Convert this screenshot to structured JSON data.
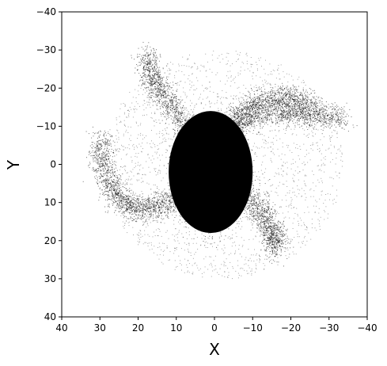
{
  "chart_data": {
    "type": "scatter",
    "title": "",
    "xlabel": "X",
    "ylabel": "Y",
    "xlim": [
      40,
      -40
    ],
    "ylim": [
      40,
      -40
    ],
    "x_inverted": true,
    "y_inverted": true,
    "x_ticks": [
      40,
      30,
      20,
      10,
      0,
      -10,
      -20,
      -30,
      -40
    ],
    "x_tick_labels": [
      "40",
      "30",
      "20",
      "10",
      "0",
      "−10",
      "−20",
      "−30",
      "−40"
    ],
    "y_ticks": [
      -40,
      -30,
      -20,
      -10,
      0,
      10,
      20,
      30,
      40
    ],
    "y_tick_labels": [
      "−40",
      "−30",
      "−20",
      "−10",
      "0",
      "10",
      "20",
      "30",
      "40"
    ],
    "grid": false,
    "legend": "none",
    "marker_color": "#000000",
    "background": "#ffffff",
    "core": {
      "x": 1,
      "y": 2,
      "width": 11,
      "height": 16
    },
    "spiral_arms": [
      {
        "points": [
          [
            0,
            -5
          ],
          [
            -8,
            -12
          ],
          [
            -18,
            -14
          ],
          [
            -25,
            -13
          ],
          [
            -34,
            -12
          ]
        ]
      },
      {
        "points": [
          [
            5,
            5
          ],
          [
            12,
            10
          ],
          [
            20,
            12
          ],
          [
            25,
            9
          ],
          [
            29,
            2
          ],
          [
            30,
            -7
          ]
        ]
      },
      {
        "points": [
          [
            -4,
            -10
          ],
          [
            -10,
            -16
          ],
          [
            -18,
            -18
          ],
          [
            -26,
            -16
          ]
        ]
      },
      {
        "points": [
          [
            6,
            -8
          ],
          [
            12,
            -16
          ],
          [
            16,
            -22
          ],
          [
            18,
            -29
          ]
        ]
      },
      {
        "points": [
          [
            -6,
            6
          ],
          [
            -12,
            12
          ],
          [
            -15,
            18
          ],
          [
            -16,
            22
          ]
        ]
      }
    ],
    "halo_extent": {
      "x": [
        -40,
        35
      ],
      "y": [
        -30,
        32
      ]
    }
  }
}
